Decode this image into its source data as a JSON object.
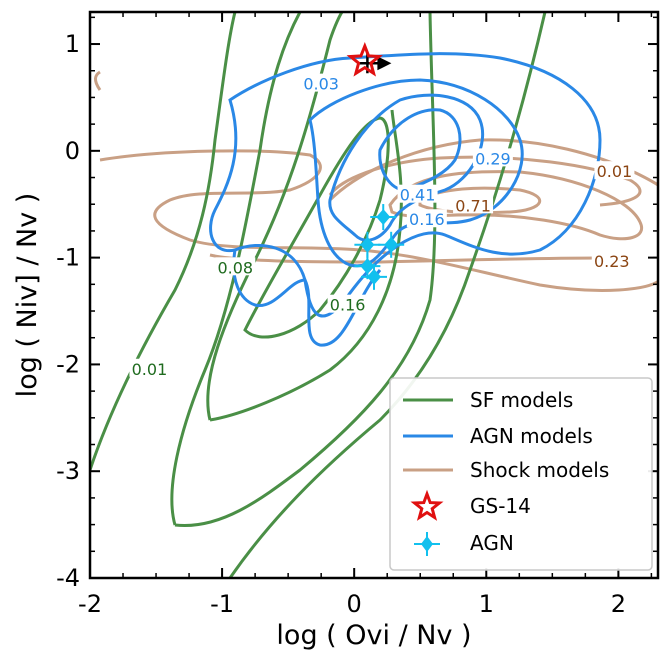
{
  "chart_data": {
    "type": "contour",
    "xlabel": "log ( Ovi / Nv )",
    "ylabel": "log ( Niv] / Nv )",
    "xlim": [
      -2.0,
      2.3
    ],
    "ylim": [
      -4.0,
      1.3
    ],
    "x_ticks": [
      "-2",
      "-1",
      "0",
      "1",
      "2"
    ],
    "y_ticks": [
      "1",
      "0",
      "-1",
      "-2",
      "-3",
      "-4"
    ],
    "colors": {
      "sf": "#4a8f46",
      "agn": "#2a88e6",
      "shock": "#c9a085",
      "shock_label": "#8b4513",
      "sf_label": "#1f6b1f",
      "agn_label": "#2a88e6",
      "gs14": "#e01010",
      "agn_points": "#12c0ee"
    },
    "contour_labels": {
      "sf": [
        {
          "text": "0.01",
          "x": -1.55,
          "y": -2.05
        },
        {
          "text": "0.08",
          "x": -0.9,
          "y": -1.1
        },
        {
          "text": "0.16",
          "x": -0.05,
          "y": -1.45
        }
      ],
      "agn": [
        {
          "text": "0.03",
          "x": -0.25,
          "y": 0.62
        },
        {
          "text": "0.29",
          "x": 1.05,
          "y": -0.08
        },
        {
          "text": "0.41",
          "x": 0.48,
          "y": -0.42
        },
        {
          "text": "0.16",
          "x": 0.55,
          "y": -0.65
        }
      ],
      "shock": [
        {
          "text": "0.01",
          "x": 1.97,
          "y": -0.2
        },
        {
          "text": "0.71",
          "x": 0.9,
          "y": -0.52
        },
        {
          "text": "0.23",
          "x": 1.95,
          "y": -1.04
        }
      ]
    },
    "series": [
      {
        "name": "SF models",
        "type": "contour"
      },
      {
        "name": "AGN models",
        "type": "contour"
      },
      {
        "name": "Shock models",
        "type": "contour"
      },
      {
        "name": "GS-14",
        "type": "scatter",
        "marker": "star",
        "points": [
          {
            "x": 0.08,
            "y": 0.84
          }
        ],
        "limits": [
          {
            "x": 0.1,
            "y": 0.82,
            "direction": "right"
          }
        ]
      },
      {
        "name": "AGN",
        "type": "scatter",
        "marker": "diamond",
        "points": [
          {
            "x": 0.22,
            "y": -0.62
          },
          {
            "x": 0.1,
            "y": -0.88
          },
          {
            "x": 0.28,
            "y": -0.88
          },
          {
            "x": 0.1,
            "y": -1.08
          },
          {
            "x": 0.15,
            "y": -1.18
          }
        ]
      }
    ],
    "legend": {
      "placement": "lower-right",
      "entries": [
        "SF models",
        "AGN models",
        "Shock models",
        "GS-14",
        "AGN"
      ]
    }
  }
}
